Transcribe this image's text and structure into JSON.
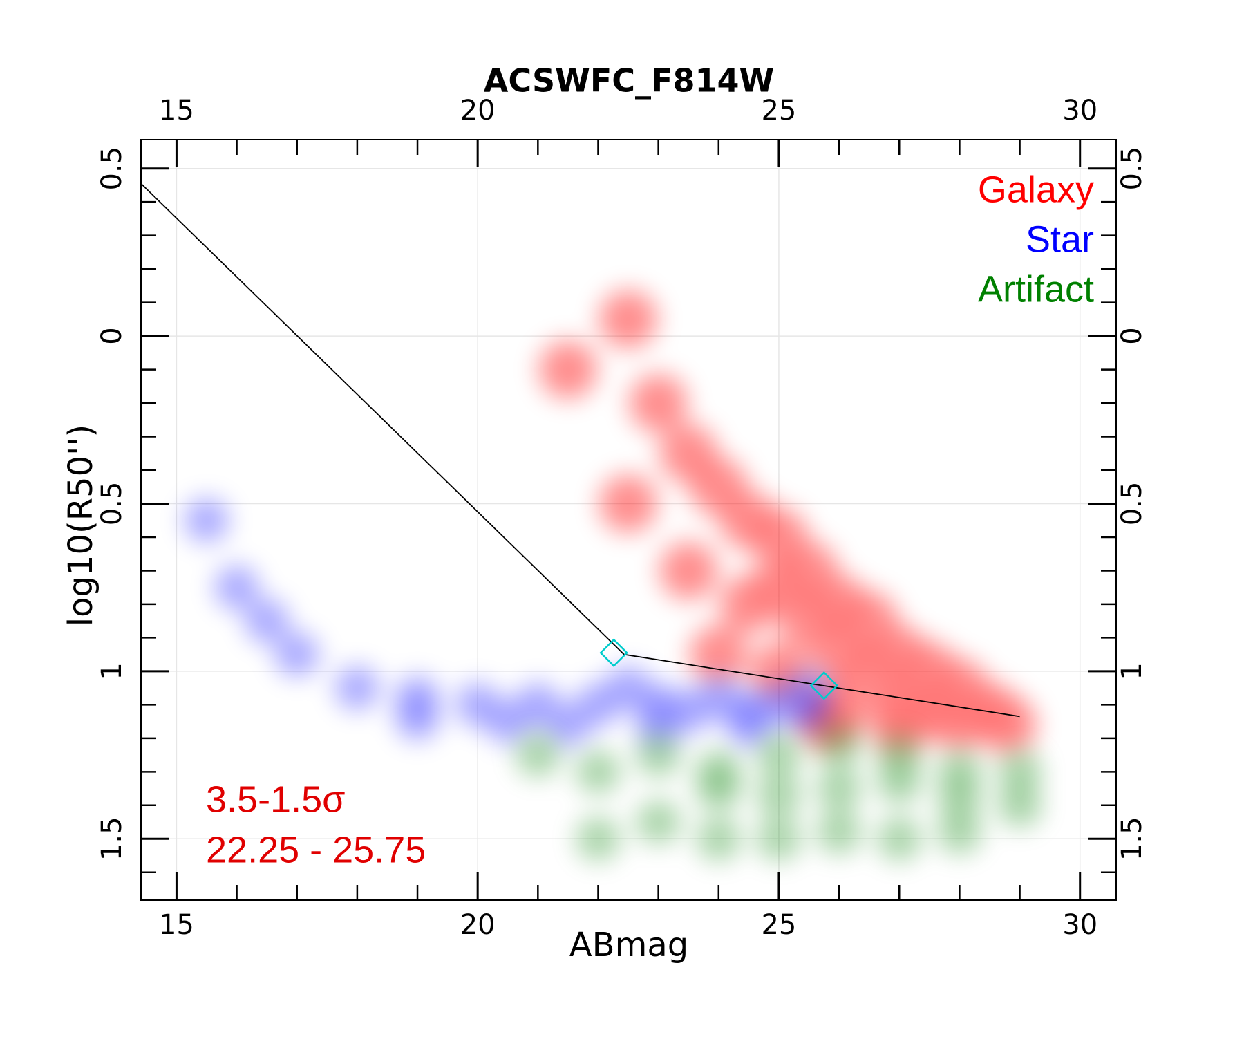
{
  "chart_data": {
    "type": "scatter",
    "title": "ACSWFC_F814W",
    "xlabel": "ABmag",
    "ylabel": "log10(R50'')",
    "xlim": [
      14.41,
      30.6
    ],
    "ylim": [
      -1.683,
      0.586
    ],
    "xticks": [
      15,
      20,
      25,
      30
    ],
    "xminorticks": [
      16,
      17,
      18,
      19,
      21,
      22,
      23,
      24,
      26,
      27,
      28,
      29
    ],
    "yticks": [
      {
        "value": -1.5,
        "label": "1.5"
      },
      {
        "value": -1,
        "label": "1"
      },
      {
        "value": -0.5,
        "label": "0.5"
      },
      0,
      0.5
    ],
    "yminorticks": [
      -1.6,
      -1.4,
      -1.3,
      -1.2,
      -1.1,
      -0.9,
      -0.8,
      -0.7,
      -0.6,
      -0.4,
      -0.3,
      -0.2,
      -0.1,
      0.1,
      0.2,
      0.3,
      0.4
    ],
    "grid": true,
    "legend": "upper right",
    "series": [
      {
        "name": "Galaxy",
        "color": "#ff0000",
        "x": [
          21.5,
          22.5,
          23,
          23.5,
          24,
          24.5,
          25,
          25,
          25.5,
          25.5,
          26,
          26,
          26.5,
          26.5,
          27,
          27,
          27.5,
          27.5,
          28,
          28,
          28.5,
          24.5,
          25,
          26,
          27,
          23.5,
          22.5,
          24,
          25.8,
          28.8
        ],
        "y": [
          -0.1,
          0.05,
          -0.2,
          -0.35,
          -0.45,
          -0.55,
          -0.6,
          -0.75,
          -0.7,
          -0.85,
          -0.8,
          -0.95,
          -0.85,
          -1.0,
          -0.95,
          -1.1,
          -1.0,
          -1.12,
          -1.05,
          -1.15,
          -1.12,
          -0.8,
          -1.0,
          -1.12,
          -1.16,
          -0.7,
          -0.5,
          -0.95,
          -1.15,
          -1.16
        ]
      },
      {
        "name": "Star",
        "color": "#0000ff",
        "x": [
          15.5,
          16,
          16.5,
          17,
          18,
          19,
          20,
          21,
          22,
          22.5,
          23,
          23.5,
          24,
          24.5,
          25,
          25.5,
          25.5,
          20.5,
          21.5,
          23,
          24.5,
          19
        ],
        "y": [
          -0.55,
          -0.75,
          -0.85,
          -0.95,
          -1.05,
          -1.08,
          -1.1,
          -1.1,
          -1.1,
          -1.05,
          -1.1,
          -1.12,
          -1.08,
          -1.12,
          -1.1,
          -1.12,
          -1.06,
          -1.15,
          -1.16,
          -1.16,
          -1.16,
          -1.14
        ]
      },
      {
        "name": "Artifact",
        "color": "#008000",
        "x": [
          21,
          22,
          23,
          24,
          25,
          26,
          27,
          28,
          29,
          24,
          25,
          26,
          27,
          28,
          23,
          24,
          25,
          26,
          27,
          28,
          22,
          29
        ],
        "y": [
          -1.25,
          -1.3,
          -1.25,
          -1.3,
          -1.25,
          -1.22,
          -1.25,
          -1.3,
          -1.3,
          -1.35,
          -1.37,
          -1.35,
          -1.33,
          -1.38,
          -1.45,
          -1.5,
          -1.5,
          -1.48,
          -1.5,
          -1.48,
          -1.5,
          -1.4
        ]
      }
    ],
    "cut_line": {
      "color": "#000000",
      "x": [
        14.41,
        22.43,
        29.0
      ],
      "y": [
        0.455,
        -0.95,
        -1.135
      ]
    },
    "cut_markers": {
      "color": "#00cccc",
      "x": [
        22.26,
        25.75
      ],
      "y": [
        -0.945,
        -1.043
      ]
    },
    "annotations": [
      "3.5-1.5σ",
      "22.25 - 25.75"
    ],
    "annotation_color": "#e00000"
  }
}
